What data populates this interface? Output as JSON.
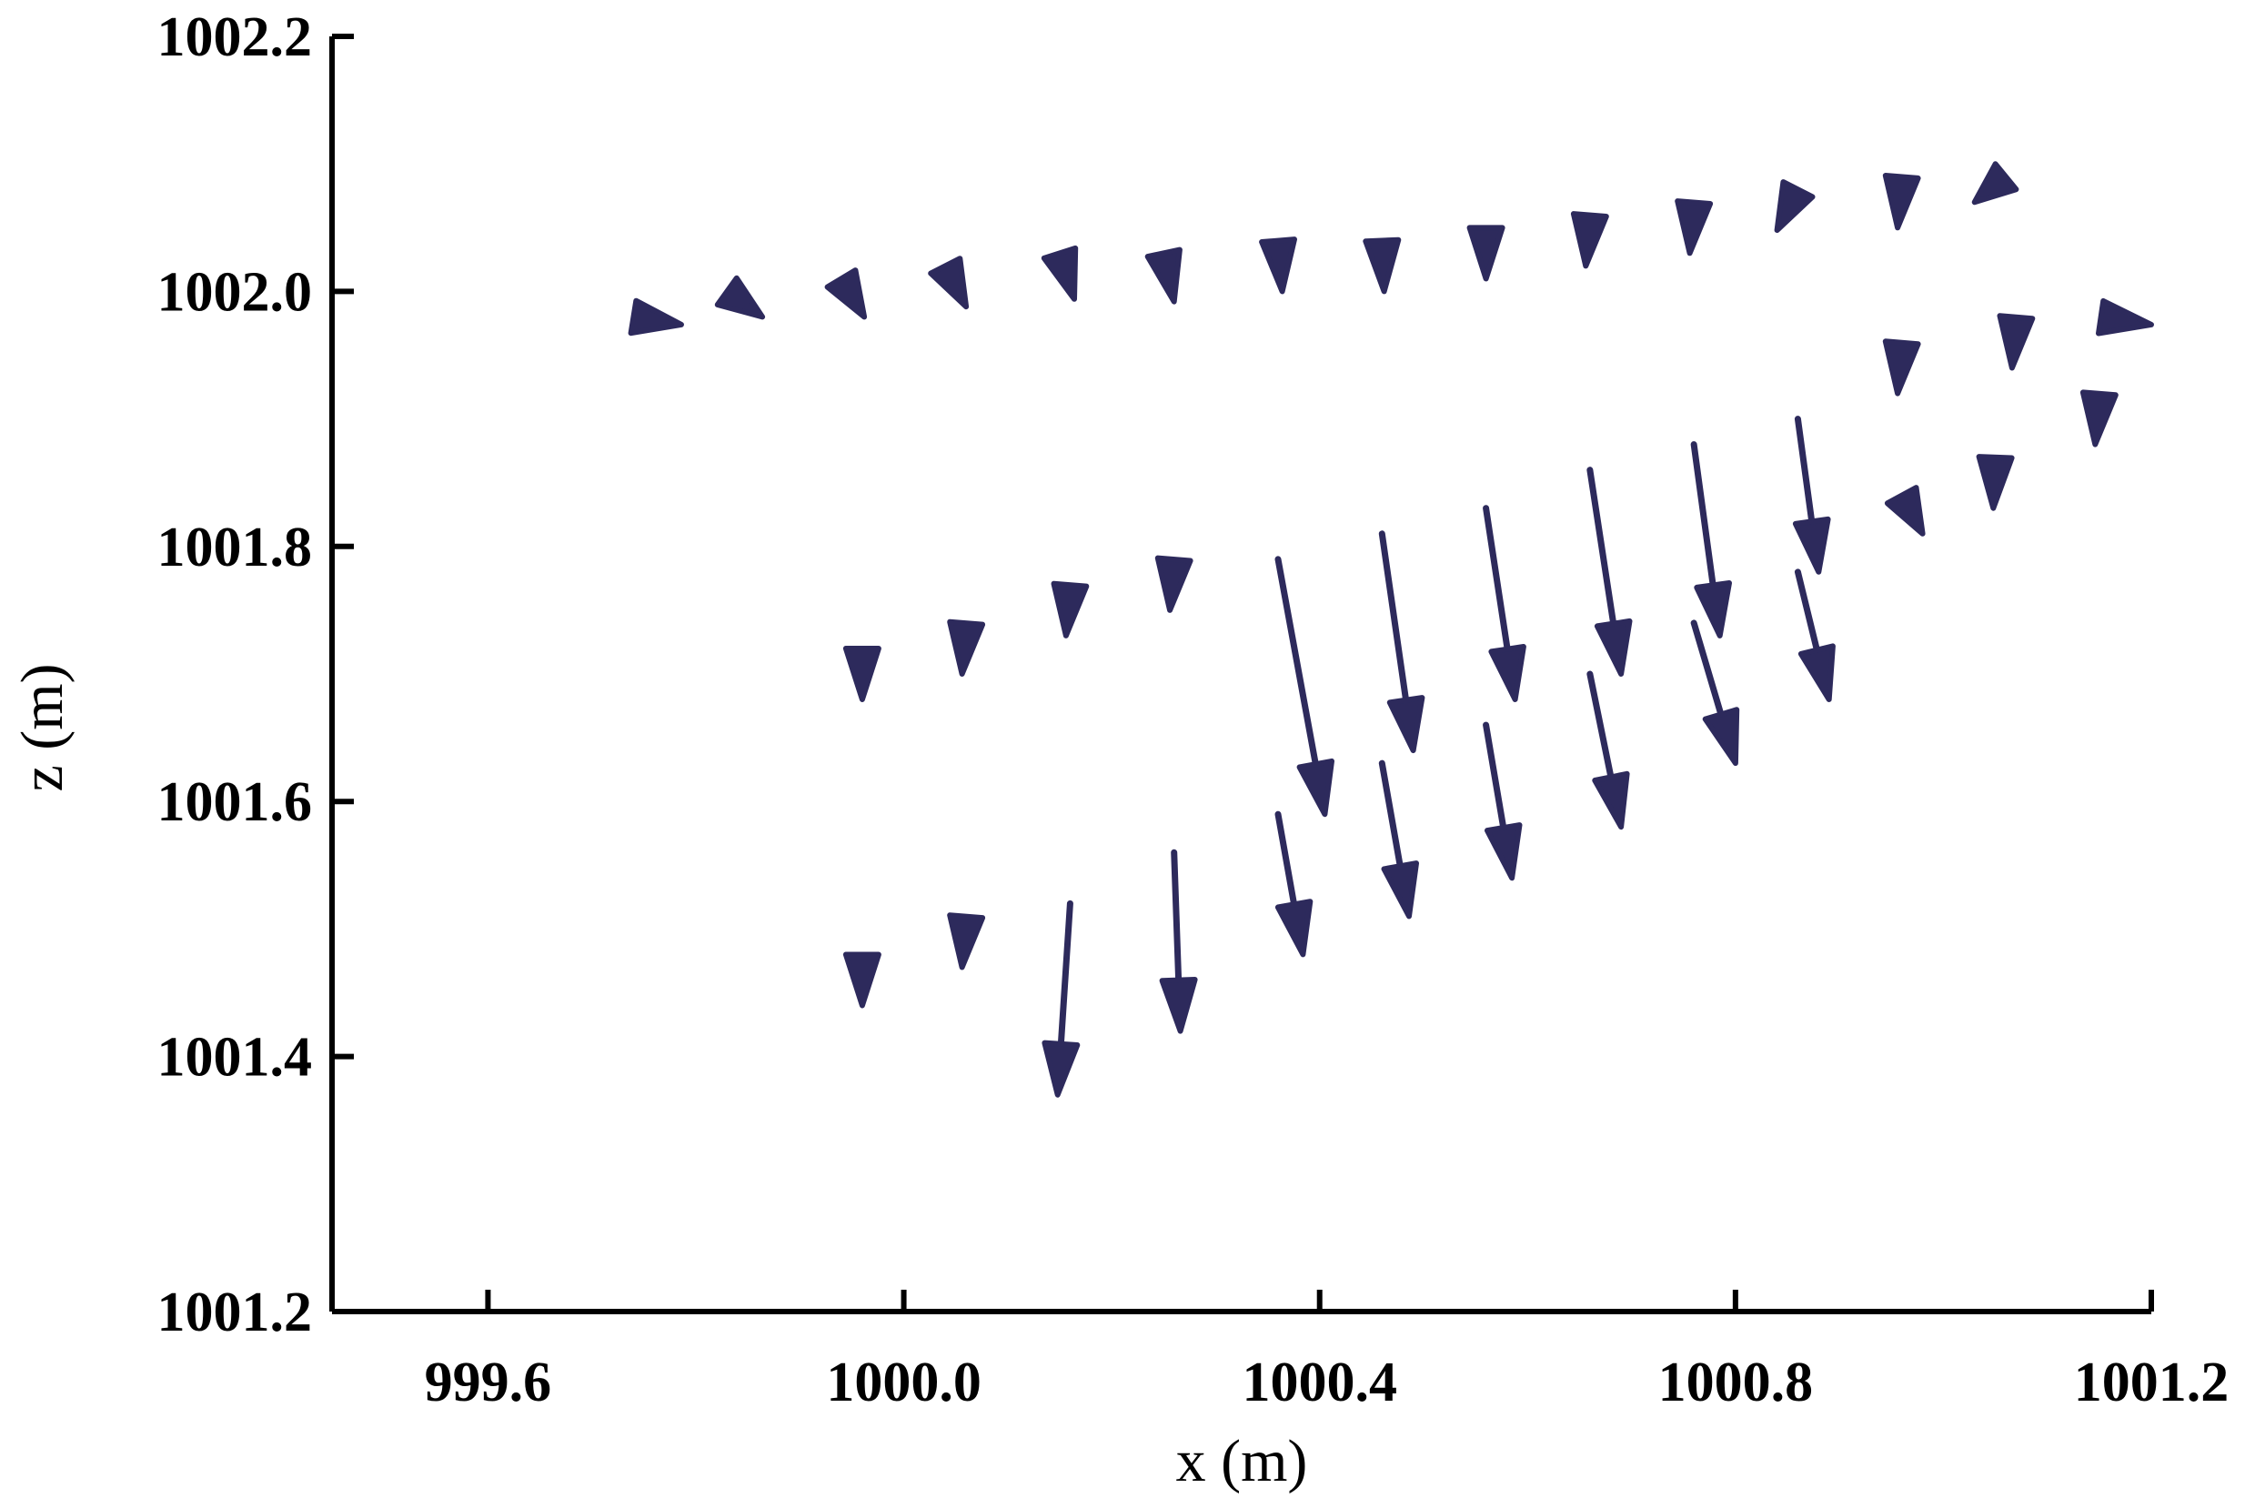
{
  "chart_data": {
    "type": "vector-field",
    "xlabel": "x (m)",
    "ylabel": "z (m)",
    "xlim": [
      999.45,
      1001.2
    ],
    "ylim": [
      1001.2,
      1002.2
    ],
    "xticks": [
      999.6,
      1000.0,
      1000.4,
      1000.8,
      1001.2
    ],
    "xtick_labels": [
      "999.6",
      "1000.0",
      "1000.4",
      "1000.8",
      "1001.2"
    ],
    "yticks": [
      1001.2,
      1001.4,
      1001.6,
      1001.8,
      1002.0,
      1002.2
    ],
    "ytick_labels": [
      "1001.2",
      "1001.4",
      "1001.6",
      "1001.8",
      "1002.0",
      "1002.2"
    ],
    "arrow_color": "#2d2a5c",
    "vectors": [
      {
        "x": 999.74,
        "z": 1001.98,
        "dx": 0.046,
        "dz": -0.006
      },
      {
        "x": 999.83,
        "z": 1002.0,
        "dx": 0.034,
        "dz": -0.02
      },
      {
        "x": 999.94,
        "z": 1002.01,
        "dx": 0.022,
        "dz": -0.03
      },
      {
        "x": 1000.04,
        "z": 1002.02,
        "dx": 0.02,
        "dz": -0.032
      },
      {
        "x": 1000.15,
        "z": 1002.03,
        "dx": 0.014,
        "dz": -0.036
      },
      {
        "x": 1000.25,
        "z": 1002.03,
        "dx": 0.01,
        "dz": -0.038
      },
      {
        "x": 1000.36,
        "z": 1002.04,
        "dx": 0.004,
        "dz": -0.04
      },
      {
        "x": 1000.46,
        "z": 1002.04,
        "dx": 0.002,
        "dz": -0.04
      },
      {
        "x": 1000.56,
        "z": 1002.05,
        "dx": 0.0,
        "dz": -0.04
      },
      {
        "x": 1000.66,
        "z": 1002.06,
        "dx": -0.004,
        "dz": -0.04
      },
      {
        "x": 1000.76,
        "z": 1002.07,
        "dx": -0.004,
        "dz": -0.04
      },
      {
        "x": 1000.86,
        "z": 1002.08,
        "dx": -0.02,
        "dz": -0.032
      },
      {
        "x": 1000.96,
        "z": 1002.09,
        "dx": -0.004,
        "dz": -0.04
      },
      {
        "x": 1001.06,
        "z": 1002.09,
        "dx": -0.03,
        "dz": -0.02
      },
      {
        "x": 1000.96,
        "z": 1001.96,
        "dx": -0.004,
        "dz": -0.04
      },
      {
        "x": 1001.07,
        "z": 1001.98,
        "dx": -0.004,
        "dz": -0.04
      },
      {
        "x": 1001.15,
        "z": 1001.98,
        "dx": 0.05,
        "dz": -0.006
      },
      {
        "x": 1000.96,
        "z": 1001.84,
        "dx": 0.02,
        "dz": -0.03
      },
      {
        "x": 1001.05,
        "z": 1001.87,
        "dx": -0.002,
        "dz": -0.04
      },
      {
        "x": 1001.15,
        "z": 1001.92,
        "dx": -0.004,
        "dz": -0.04
      },
      {
        "x": 999.96,
        "z": 1001.72,
        "dx": 0.0,
        "dz": -0.04
      },
      {
        "x": 1000.06,
        "z": 1001.74,
        "dx": -0.004,
        "dz": -0.04
      },
      {
        "x": 1000.16,
        "z": 1001.77,
        "dx": -0.004,
        "dz": -0.04
      },
      {
        "x": 1000.26,
        "z": 1001.79,
        "dx": -0.004,
        "dz": -0.04
      },
      {
        "x": 1000.36,
        "z": 1001.79,
        "dx": 0.045,
        "dz": -0.2
      },
      {
        "x": 1000.46,
        "z": 1001.81,
        "dx": 0.03,
        "dz": -0.17
      },
      {
        "x": 1000.56,
        "z": 1001.83,
        "dx": 0.028,
        "dz": -0.15
      },
      {
        "x": 1000.66,
        "z": 1001.86,
        "dx": 0.03,
        "dz": -0.16
      },
      {
        "x": 1000.76,
        "z": 1001.88,
        "dx": 0.025,
        "dz": -0.15
      },
      {
        "x": 1000.86,
        "z": 1001.9,
        "dx": 0.02,
        "dz": -0.12
      },
      {
        "x": 1000.76,
        "z": 1001.74,
        "dx": 0.04,
        "dz": -0.11
      },
      {
        "x": 1000.86,
        "z": 1001.78,
        "dx": 0.03,
        "dz": -0.1
      },
      {
        "x": 1000.56,
        "z": 1001.66,
        "dx": 0.025,
        "dz": -0.12
      },
      {
        "x": 1000.66,
        "z": 1001.7,
        "dx": 0.03,
        "dz": -0.12
      },
      {
        "x": 999.96,
        "z": 1001.48,
        "dx": 0.0,
        "dz": -0.04
      },
      {
        "x": 1000.06,
        "z": 1001.51,
        "dx": -0.004,
        "dz": -0.04
      },
      {
        "x": 1000.16,
        "z": 1001.52,
        "dx": -0.012,
        "dz": -0.15
      },
      {
        "x": 1000.26,
        "z": 1001.56,
        "dx": 0.006,
        "dz": -0.14
      },
      {
        "x": 1000.36,
        "z": 1001.59,
        "dx": 0.024,
        "dz": -0.11
      },
      {
        "x": 1000.46,
        "z": 1001.63,
        "dx": 0.026,
        "dz": -0.12
      }
    ]
  }
}
